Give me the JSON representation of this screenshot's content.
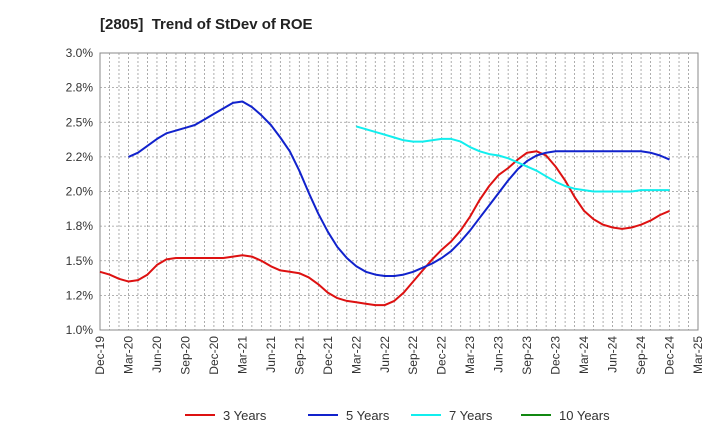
{
  "chart_data": {
    "type": "line",
    "title": "[2805]  Trend of StDev of ROE",
    "xlabel": "",
    "ylabel": "",
    "x_ticks": [
      "Dec-19",
      "Mar-20",
      "Jun-20",
      "Sep-20",
      "Dec-20",
      "Mar-21",
      "Jun-21",
      "Sep-21",
      "Dec-21",
      "Mar-22",
      "Jun-22",
      "Sep-22",
      "Dec-22",
      "Mar-23",
      "Jun-23",
      "Sep-23",
      "Dec-23",
      "Mar-24",
      "Jun-24",
      "Sep-24",
      "Dec-24",
      "Mar-25"
    ],
    "y_ticks": [
      "1.0%",
      "1.2%",
      "1.5%",
      "1.8%",
      "2.0%",
      "2.2%",
      "2.5%",
      "2.8%",
      "3.0%"
    ],
    "y_tick_values": [
      1.0,
      1.25,
      1.5,
      1.75,
      2.0,
      2.25,
      2.5,
      2.75,
      3.0
    ],
    "ylim": [
      1.0,
      3.0
    ],
    "grid": true,
    "legend_position": "bottom",
    "series": [
      {
        "name": "3 Years",
        "color": "#dd1111",
        "x": [
          "Dec-19",
          "Jan-20",
          "Feb-20",
          "Mar-20",
          "Apr-20",
          "May-20",
          "Jun-20",
          "Jul-20",
          "Aug-20",
          "Sep-20",
          "Oct-20",
          "Nov-20",
          "Dec-20",
          "Jan-21",
          "Feb-21",
          "Mar-21",
          "Apr-21",
          "May-21",
          "Jun-21",
          "Jul-21",
          "Aug-21",
          "Sep-21",
          "Oct-21",
          "Nov-21",
          "Dec-21",
          "Jan-22",
          "Feb-22",
          "Mar-22",
          "Apr-22",
          "May-22",
          "Jun-22",
          "Jul-22",
          "Aug-22",
          "Sep-22",
          "Oct-22",
          "Nov-22",
          "Dec-22",
          "Jan-23",
          "Feb-23",
          "Mar-23",
          "Apr-23",
          "May-23",
          "Jun-23",
          "Jul-23",
          "Aug-23",
          "Sep-23",
          "Oct-23",
          "Nov-23",
          "Dec-23",
          "Jan-24",
          "Feb-24",
          "Mar-24",
          "Apr-24",
          "May-24",
          "Jun-24",
          "Jul-24",
          "Aug-24",
          "Sep-24",
          "Oct-24",
          "Nov-24",
          "Dec-24"
        ],
        "values": [
          1.42,
          1.4,
          1.37,
          1.35,
          1.36,
          1.4,
          1.47,
          1.51,
          1.52,
          1.52,
          1.52,
          1.52,
          1.52,
          1.52,
          1.53,
          1.54,
          1.53,
          1.5,
          1.46,
          1.43,
          1.42,
          1.41,
          1.38,
          1.33,
          1.27,
          1.23,
          1.21,
          1.2,
          1.19,
          1.18,
          1.18,
          1.21,
          1.27,
          1.35,
          1.43,
          1.51,
          1.58,
          1.64,
          1.72,
          1.82,
          1.94,
          2.04,
          2.12,
          2.17,
          2.23,
          2.28,
          2.29,
          2.26,
          2.18,
          2.08,
          1.96,
          1.86,
          1.8,
          1.76,
          1.74,
          1.73,
          1.74,
          1.76,
          1.79,
          1.83,
          1.86
        ]
      },
      {
        "name": "5 Years",
        "color": "#1122cc",
        "x": [
          "Mar-20",
          "Apr-20",
          "May-20",
          "Jun-20",
          "Jul-20",
          "Aug-20",
          "Sep-20",
          "Oct-20",
          "Nov-20",
          "Dec-20",
          "Jan-21",
          "Feb-21",
          "Mar-21",
          "Apr-21",
          "May-21",
          "Jun-21",
          "Jul-21",
          "Aug-21",
          "Sep-21",
          "Oct-21",
          "Nov-21",
          "Dec-21",
          "Jan-22",
          "Feb-22",
          "Mar-22",
          "Apr-22",
          "May-22",
          "Jun-22",
          "Jul-22",
          "Aug-22",
          "Sep-22",
          "Oct-22",
          "Nov-22",
          "Dec-22",
          "Jan-23",
          "Feb-23",
          "Mar-23",
          "Apr-23",
          "May-23",
          "Jun-23",
          "Jul-23",
          "Aug-23",
          "Sep-23",
          "Oct-23",
          "Nov-23",
          "Dec-23",
          "Jan-24",
          "Feb-24",
          "Mar-24",
          "Apr-24",
          "May-24",
          "Jun-24",
          "Jul-24",
          "Aug-24",
          "Sep-24",
          "Oct-24",
          "Nov-24",
          "Dec-24"
        ],
        "values": [
          2.25,
          2.28,
          2.33,
          2.38,
          2.42,
          2.44,
          2.46,
          2.48,
          2.52,
          2.56,
          2.6,
          2.64,
          2.65,
          2.61,
          2.55,
          2.48,
          2.39,
          2.29,
          2.15,
          1.99,
          1.84,
          1.71,
          1.6,
          1.52,
          1.46,
          1.42,
          1.4,
          1.39,
          1.39,
          1.4,
          1.42,
          1.45,
          1.48,
          1.52,
          1.57,
          1.64,
          1.72,
          1.81,
          1.9,
          1.99,
          2.08,
          2.16,
          2.22,
          2.26,
          2.28,
          2.29,
          2.29,
          2.29,
          2.29,
          2.29,
          2.29,
          2.29,
          2.29,
          2.29,
          2.29,
          2.28,
          2.26,
          2.23
        ]
      },
      {
        "name": "7 Years",
        "color": "#11eeee",
        "x": [
          "Mar-22",
          "Apr-22",
          "May-22",
          "Jun-22",
          "Jul-22",
          "Aug-22",
          "Sep-22",
          "Oct-22",
          "Nov-22",
          "Dec-22",
          "Jan-23",
          "Feb-23",
          "Mar-23",
          "Apr-23",
          "May-23",
          "Jun-23",
          "Jul-23",
          "Aug-23",
          "Sep-23",
          "Oct-23",
          "Nov-23",
          "Dec-23",
          "Jan-24",
          "Feb-24",
          "Mar-24",
          "Apr-24",
          "May-24",
          "Jun-24",
          "Jul-24",
          "Aug-24",
          "Sep-24",
          "Oct-24",
          "Nov-24",
          "Dec-24"
        ],
        "values": [
          2.47,
          2.45,
          2.43,
          2.41,
          2.39,
          2.37,
          2.36,
          2.36,
          2.37,
          2.38,
          2.38,
          2.36,
          2.32,
          2.29,
          2.27,
          2.26,
          2.24,
          2.21,
          2.18,
          2.15,
          2.11,
          2.07,
          2.04,
          2.02,
          2.01,
          2.0,
          2.0,
          2.0,
          2.0,
          2.0,
          2.01,
          2.01,
          2.01,
          2.01
        ]
      },
      {
        "name": "10 Years",
        "color": "#118811",
        "x": [],
        "values": []
      }
    ]
  }
}
